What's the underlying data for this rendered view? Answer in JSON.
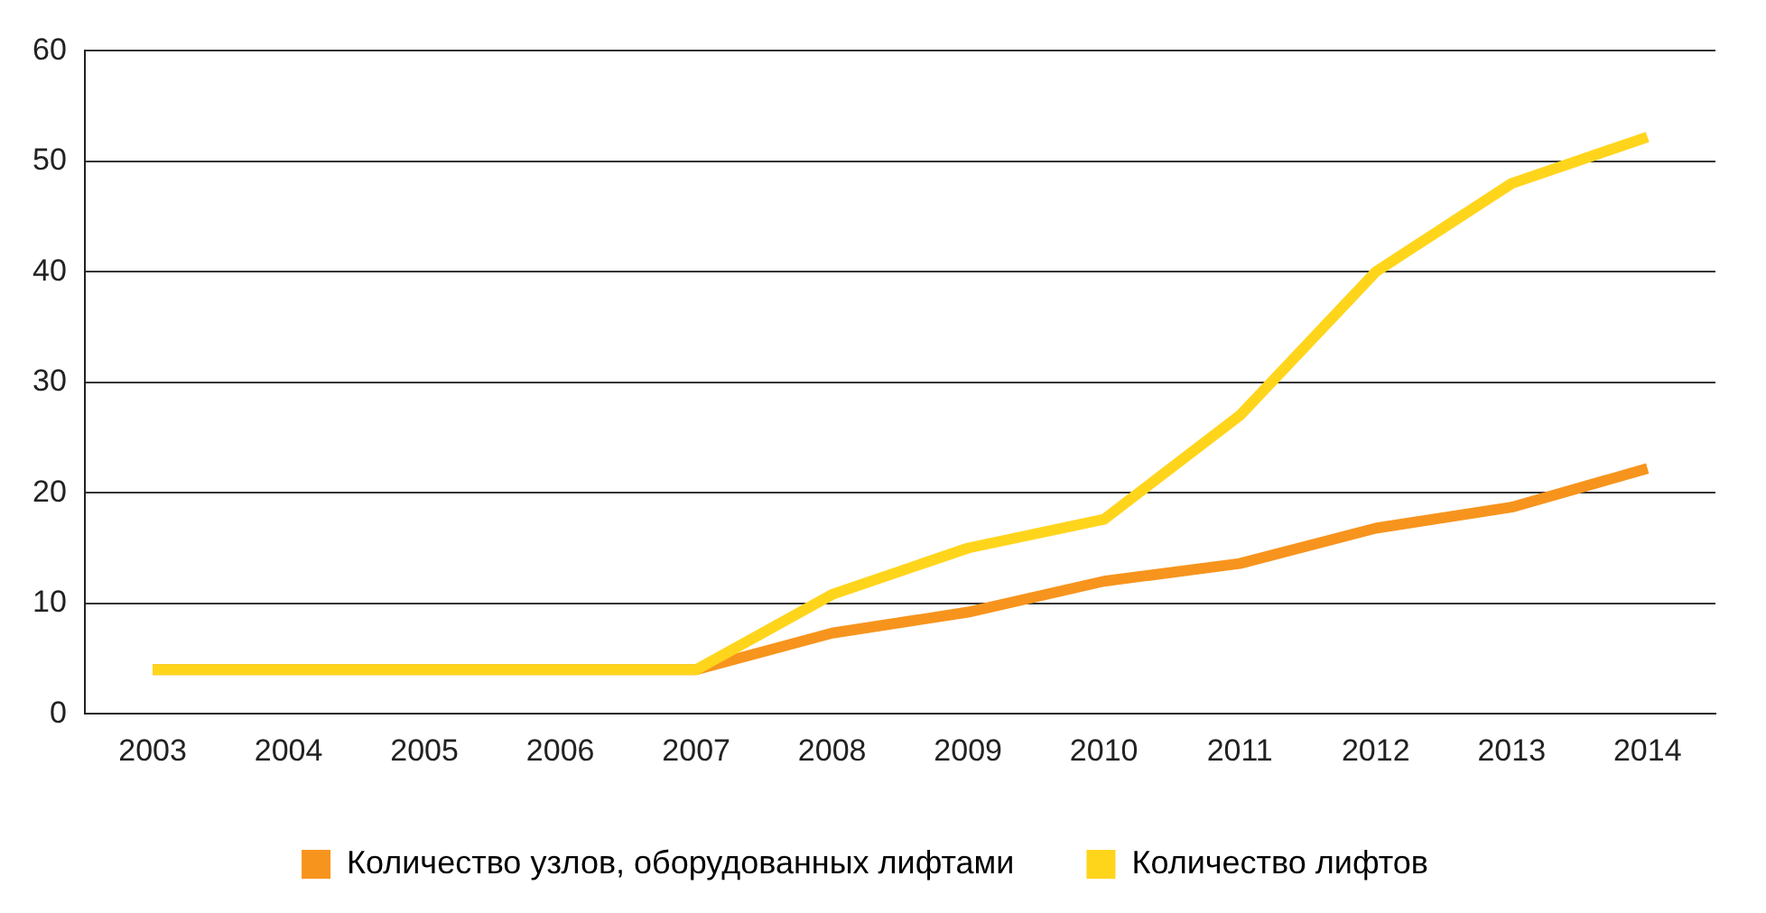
{
  "chart_data": {
    "type": "line",
    "categories": [
      "2003",
      "2004",
      "2005",
      "2006",
      "2007",
      "2008",
      "2009",
      "2010",
      "2011",
      "2012",
      "2013",
      "2014"
    ],
    "series": [
      {
        "name": "Количество узлов, оборудованных лифтами",
        "color": "#f7941d",
        "values": [
          4,
          4,
          4,
          4,
          4,
          7.3,
          9.2,
          12,
          13.6,
          16.8,
          18.7,
          22.2
        ]
      },
      {
        "name": "Количество лифтов",
        "color": "#ffd51c",
        "values": [
          4,
          4,
          4,
          4,
          4,
          10.8,
          15,
          17.6,
          27,
          40,
          48,
          52.2
        ]
      }
    ],
    "ylim": [
      0,
      60
    ],
    "yticks": [
      0,
      10,
      20,
      30,
      40,
      50,
      60
    ],
    "grid": "y",
    "legend": "bottom",
    "marker": "none",
    "line_style": "solid"
  }
}
